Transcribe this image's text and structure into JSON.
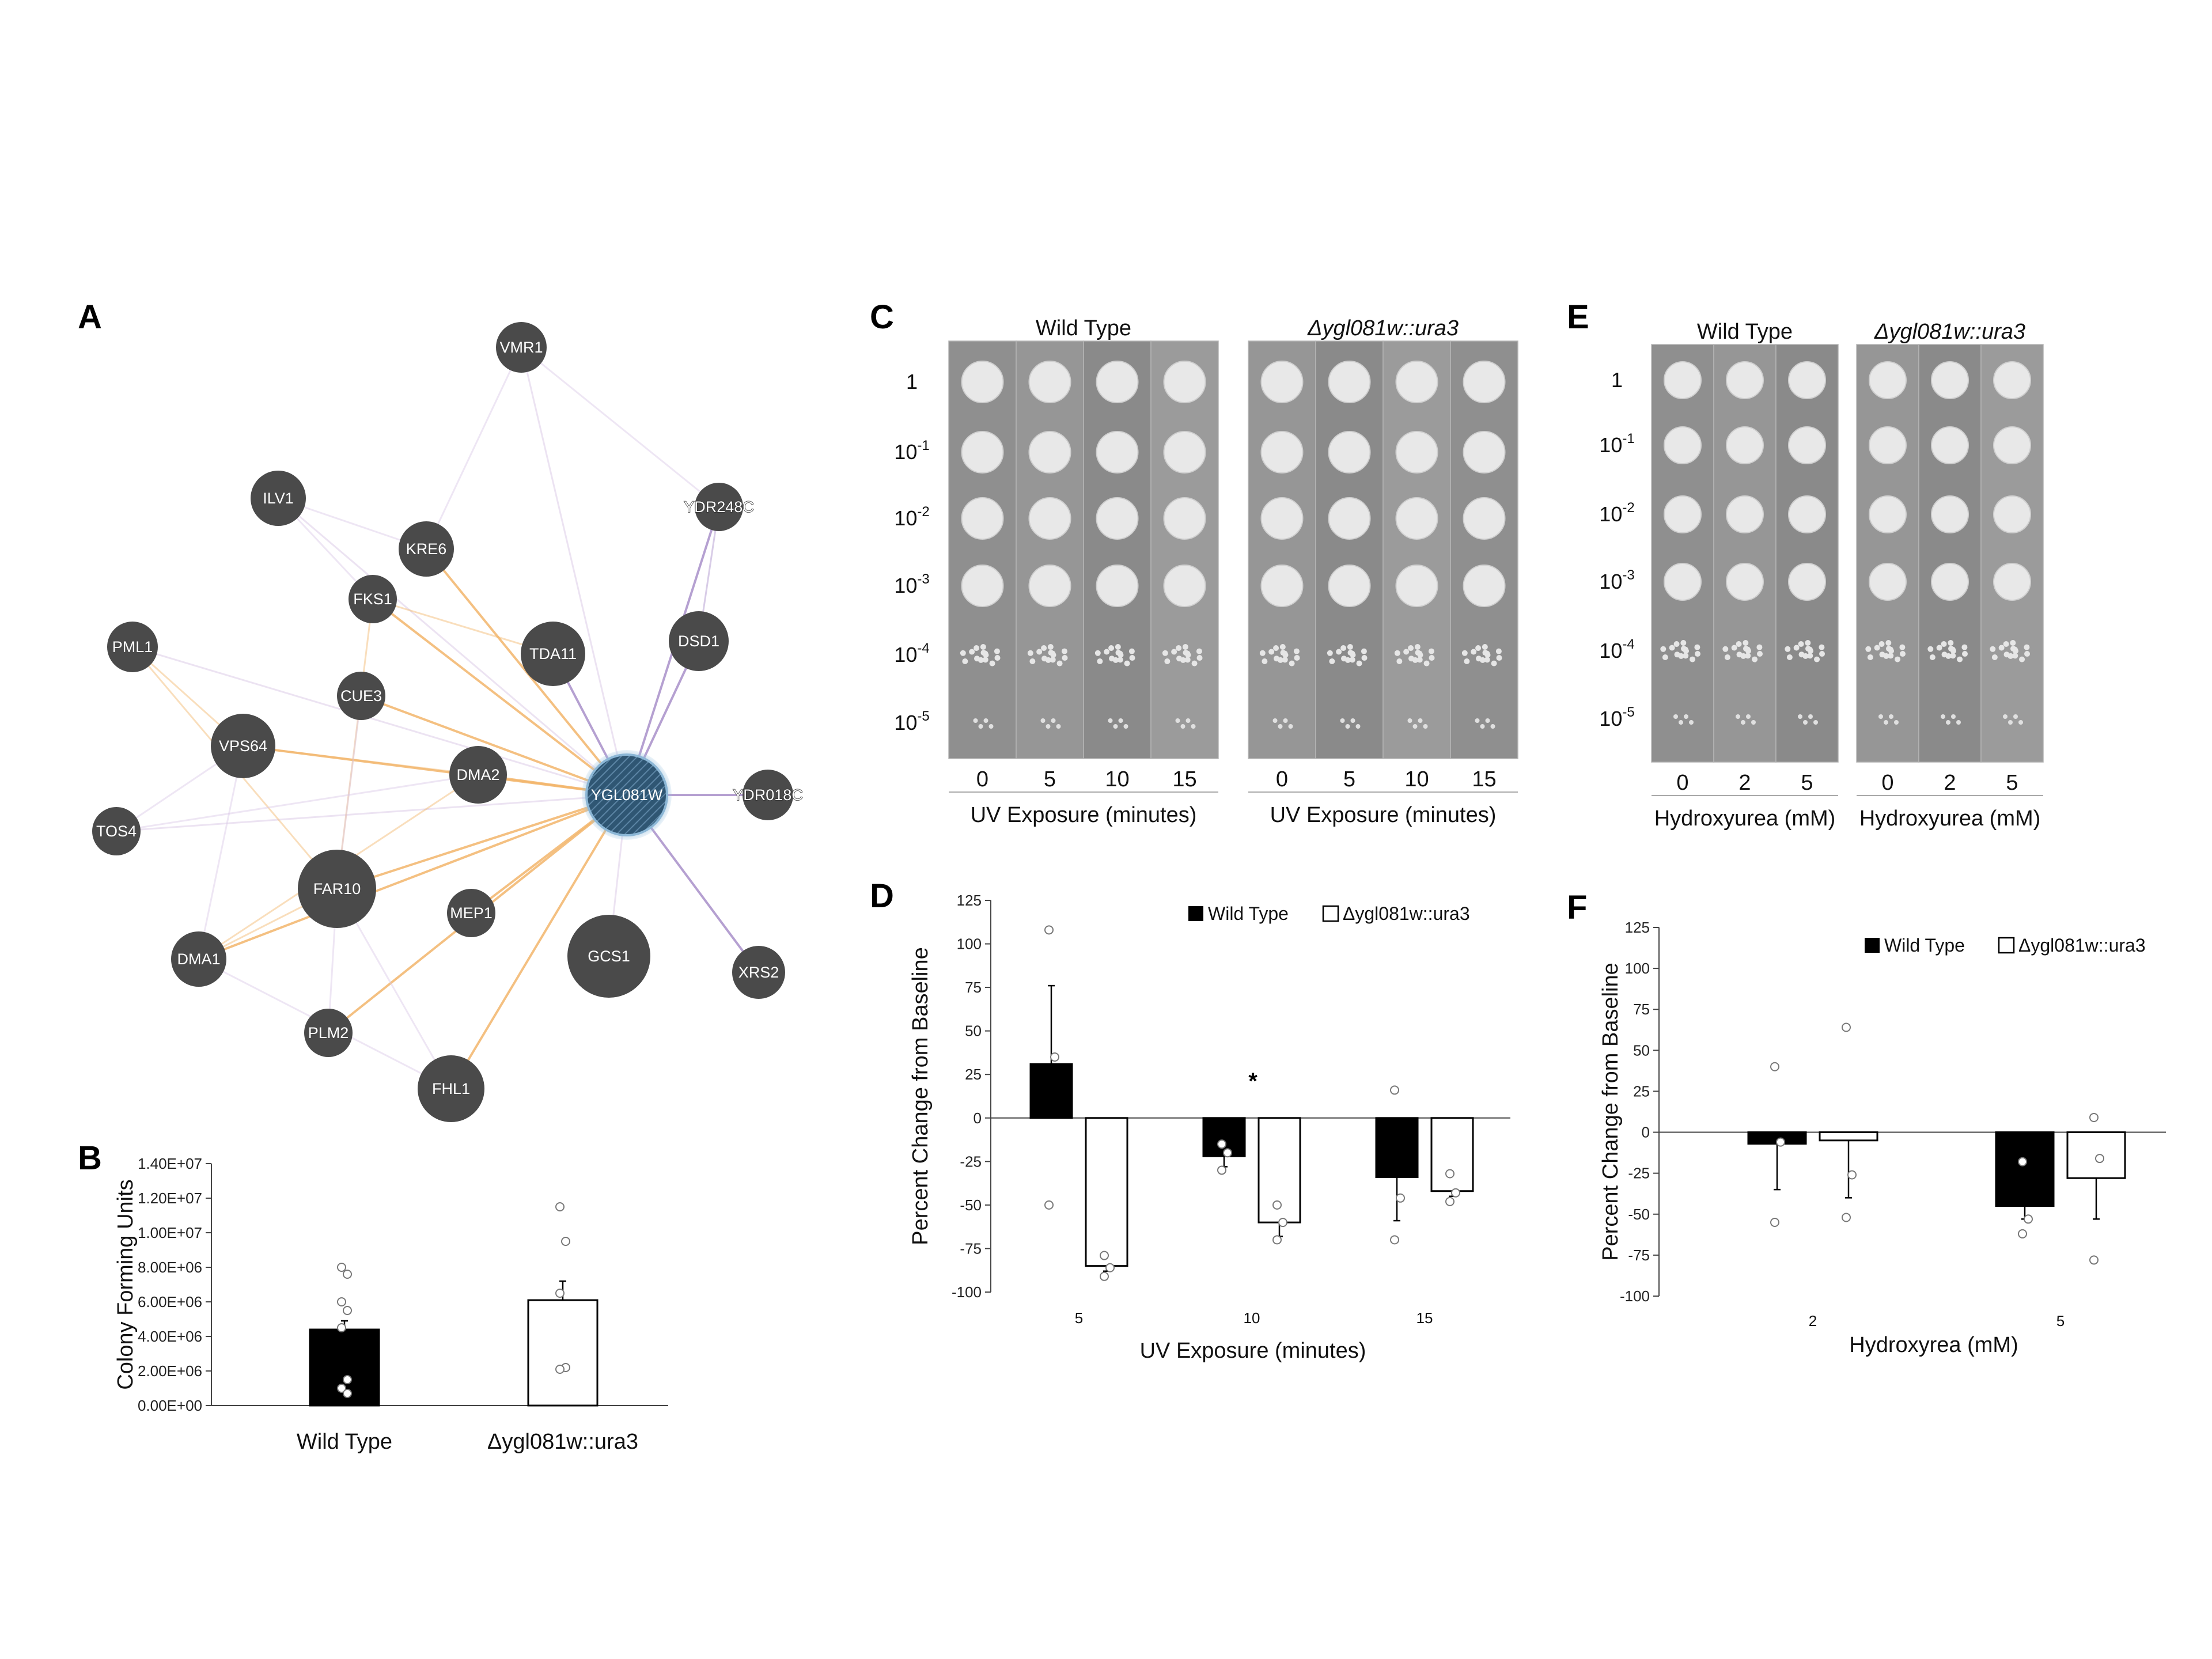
{
  "panels": {
    "A": "A",
    "B": "B",
    "C": "C",
    "D": "D",
    "E": "E",
    "F": "F"
  },
  "network": {
    "center": "YGL081W",
    "nodes": [
      {
        "id": "VMR1",
        "label": "VMR1"
      },
      {
        "id": "ILV1",
        "label": "ILV1"
      },
      {
        "id": "KRE6",
        "label": "KRE6"
      },
      {
        "id": "YDR248C",
        "label": "YDR248C"
      },
      {
        "id": "FKS1",
        "label": "FKS1"
      },
      {
        "id": "PML1",
        "label": "PML1"
      },
      {
        "id": "TDA11",
        "label": "TDA11"
      },
      {
        "id": "DSD1",
        "label": "DSD1"
      },
      {
        "id": "CUE3",
        "label": "CUE3"
      },
      {
        "id": "VPS64",
        "label": "VPS64"
      },
      {
        "id": "DMA2",
        "label": "DMA2"
      },
      {
        "id": "YGL081W",
        "label": "YGL081W"
      },
      {
        "id": "YDR018C",
        "label": "YDR018C"
      },
      {
        "id": "TOS4",
        "label": "TOS4"
      },
      {
        "id": "FAR10",
        "label": "FAR10"
      },
      {
        "id": "MEP1",
        "label": "MEP1"
      },
      {
        "id": "GCS1",
        "label": "GCS1"
      },
      {
        "id": "DMA1",
        "label": "DMA1"
      },
      {
        "id": "XRS2",
        "label": "XRS2"
      },
      {
        "id": "PLM2",
        "label": "PLM2"
      },
      {
        "id": "FHL1",
        "label": "FHL1"
      }
    ],
    "colors": {
      "node": "#4a4a4a",
      "center": "#3b6b8f",
      "genetic": "#f2b56b",
      "physical": "#a88fc9",
      "other": "#d9c8e6"
    }
  },
  "platesC": {
    "wt_title": "Wild Type",
    "mut_title": "Δygl081w::ura3",
    "dilutions": [
      {
        "base": "1",
        "exp": ""
      },
      {
        "base": "10",
        "exp": "-1"
      },
      {
        "base": "10",
        "exp": "-2"
      },
      {
        "base": "10",
        "exp": "-3"
      },
      {
        "base": "10",
        "exp": "-4"
      },
      {
        "base": "10",
        "exp": "-5"
      }
    ],
    "lanes": [
      "0",
      "5",
      "10",
      "15"
    ],
    "axis_label": "UV Exposure (minutes)"
  },
  "platesE": {
    "wt_title": "Wild Type",
    "mut_title": "Δygl081w::ura3",
    "dilutions": [
      {
        "base": "1",
        "exp": ""
      },
      {
        "base": "10",
        "exp": "-1"
      },
      {
        "base": "10",
        "exp": "-2"
      },
      {
        "base": "10",
        "exp": "-3"
      },
      {
        "base": "10",
        "exp": "-4"
      },
      {
        "base": "10",
        "exp": "-5"
      }
    ],
    "lanes": [
      "0",
      "2",
      "5"
    ],
    "axis_label": "Hydroxyurea (mM)"
  },
  "chart_data": [
    {
      "panel": "B",
      "type": "bar",
      "categories": [
        "Wild Type",
        "Δygl081w::ura3"
      ],
      "values": [
        4400000,
        6100000
      ],
      "errors": [
        500000,
        1100000
      ],
      "points": [
        [
          8000000,
          7600000,
          6000000,
          5500000,
          4500000,
          1500000,
          1000000,
          700000
        ],
        [
          11500000,
          9500000,
          6500000,
          2200000,
          2100000
        ]
      ],
      "ylabel": "Colony Forming Units",
      "ylim": [
        0,
        14000000
      ],
      "yticks": [
        "0.00E+00",
        "2.00E+06",
        "4.00E+06",
        "6.00E+06",
        "8.00E+06",
        "1.00E+07",
        "1.20E+07",
        "1.40E+07"
      ],
      "bar_colors": [
        "#000000",
        "#ffffff"
      ]
    },
    {
      "panel": "D",
      "type": "bar",
      "categories": [
        "5",
        "10",
        "15"
      ],
      "series": [
        {
          "name": "Wild Type",
          "values": [
            31,
            -22,
            -34
          ],
          "errors": [
            45,
            6,
            25
          ],
          "points": [
            [
              108,
              35,
              -50
            ],
            [
              -15,
              -20,
              -30
            ],
            [
              16,
              -46,
              -70
            ]
          ]
        },
        {
          "name": "Δygl081w::ura3",
          "values": [
            -85,
            -60,
            -42
          ],
          "errors": [
            3,
            8,
            3
          ],
          "points": [
            [
              -79,
              -86,
              -91
            ],
            [
              -50,
              -60,
              -70
            ],
            [
              -32,
              -43,
              -48
            ]
          ]
        }
      ],
      "xlabel": "UV Exposure (minutes)",
      "ylabel": "Percent Change from Baseline",
      "ylim": [
        -100,
        125
      ],
      "yticks": [
        "125",
        "100",
        "75",
        "50",
        "25",
        "0",
        "-25",
        "-50",
        "-75",
        "-100"
      ],
      "annotation": "*",
      "legend": "top-right"
    },
    {
      "panel": "F",
      "type": "bar",
      "categories": [
        "2",
        "5"
      ],
      "series": [
        {
          "name": "Wild Type",
          "values": [
            -7,
            -45
          ],
          "errors": [
            28,
            8
          ],
          "points": [
            [
              40,
              -6,
              -55
            ],
            [
              -18,
              -53,
              -62
            ]
          ]
        },
        {
          "name": "Δygl081w::ura3",
          "values": [
            -5,
            -28
          ],
          "errors": [
            35,
            25
          ],
          "points": [
            [
              64,
              -26,
              -52
            ],
            [
              9,
              -16,
              -78
            ]
          ]
        }
      ],
      "xlabel": "Hydroxyrea (mM)",
      "ylabel": "Percent Change from Baseline",
      "ylim": [
        -100,
        125
      ],
      "yticks": [
        "125",
        "100",
        "75",
        "50",
        "25",
        "0",
        "-25",
        "-50",
        "-75",
        "-100"
      ],
      "legend": "top-right"
    }
  ]
}
